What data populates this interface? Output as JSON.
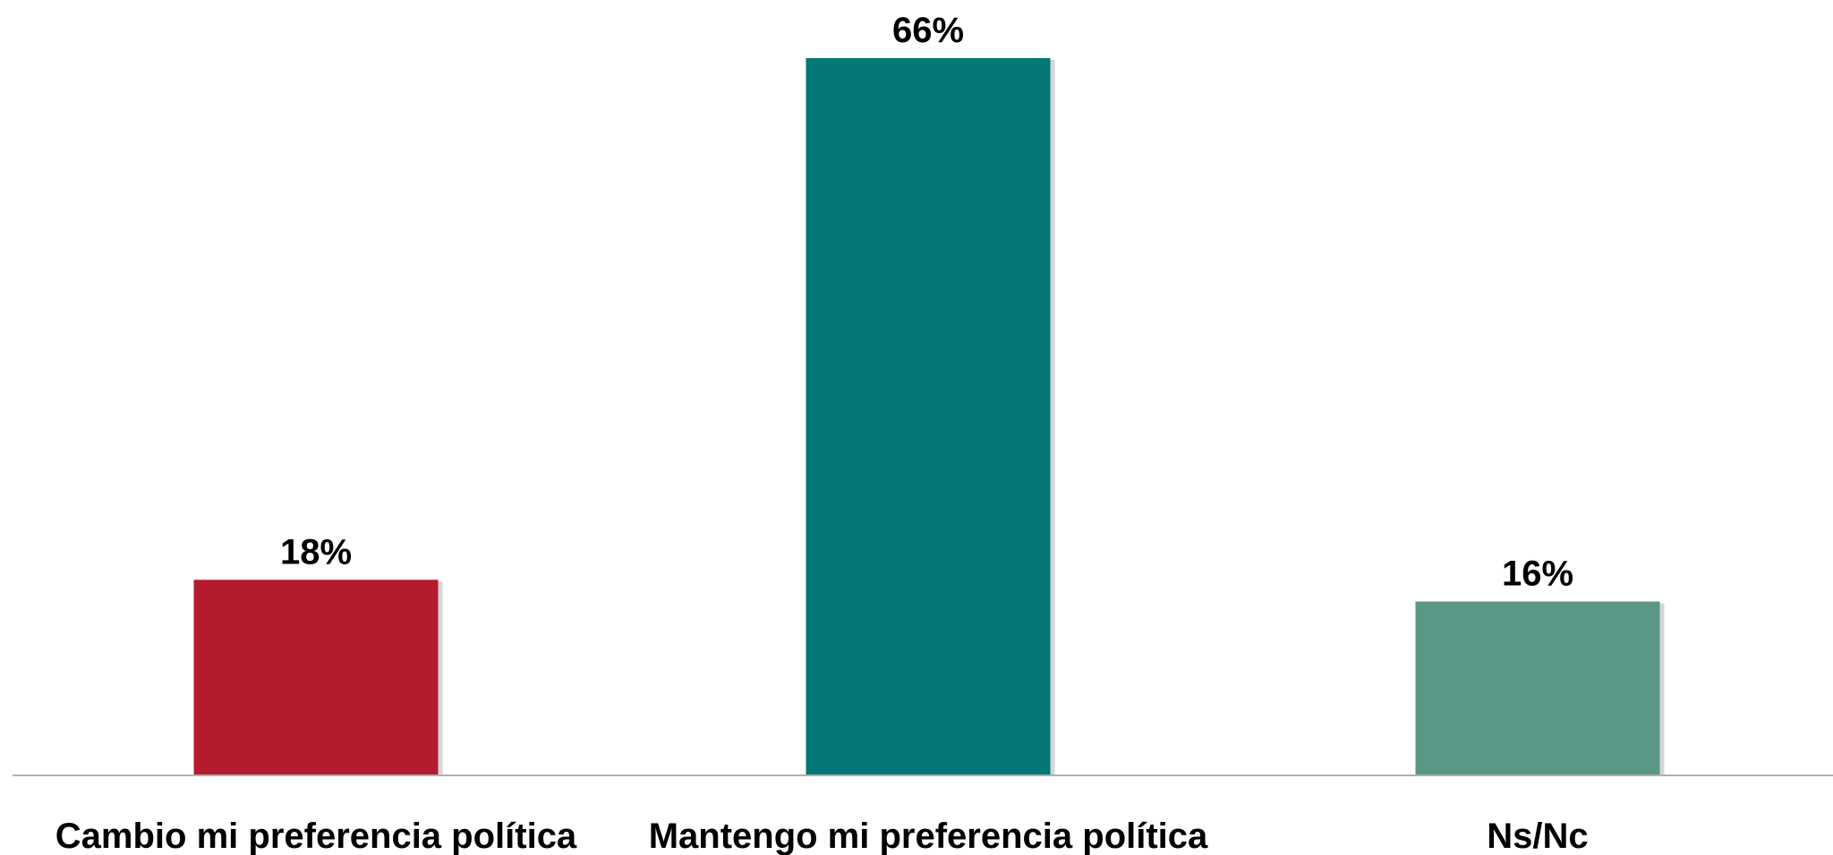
{
  "chart_data": {
    "type": "bar",
    "categories": [
      "Cambio mi preferencia política",
      "Mantengo mi preferencia política",
      "Ns/Nc"
    ],
    "values": [
      18,
      66,
      16
    ],
    "value_labels": [
      "18%",
      "66%",
      "16%"
    ],
    "colors": [
      "#b41c2e",
      "#037876",
      "#5b9787"
    ],
    "ylim": [
      0,
      66
    ],
    "grid": false,
    "legend": "none",
    "title": "",
    "xlabel": "",
    "ylabel": ""
  }
}
